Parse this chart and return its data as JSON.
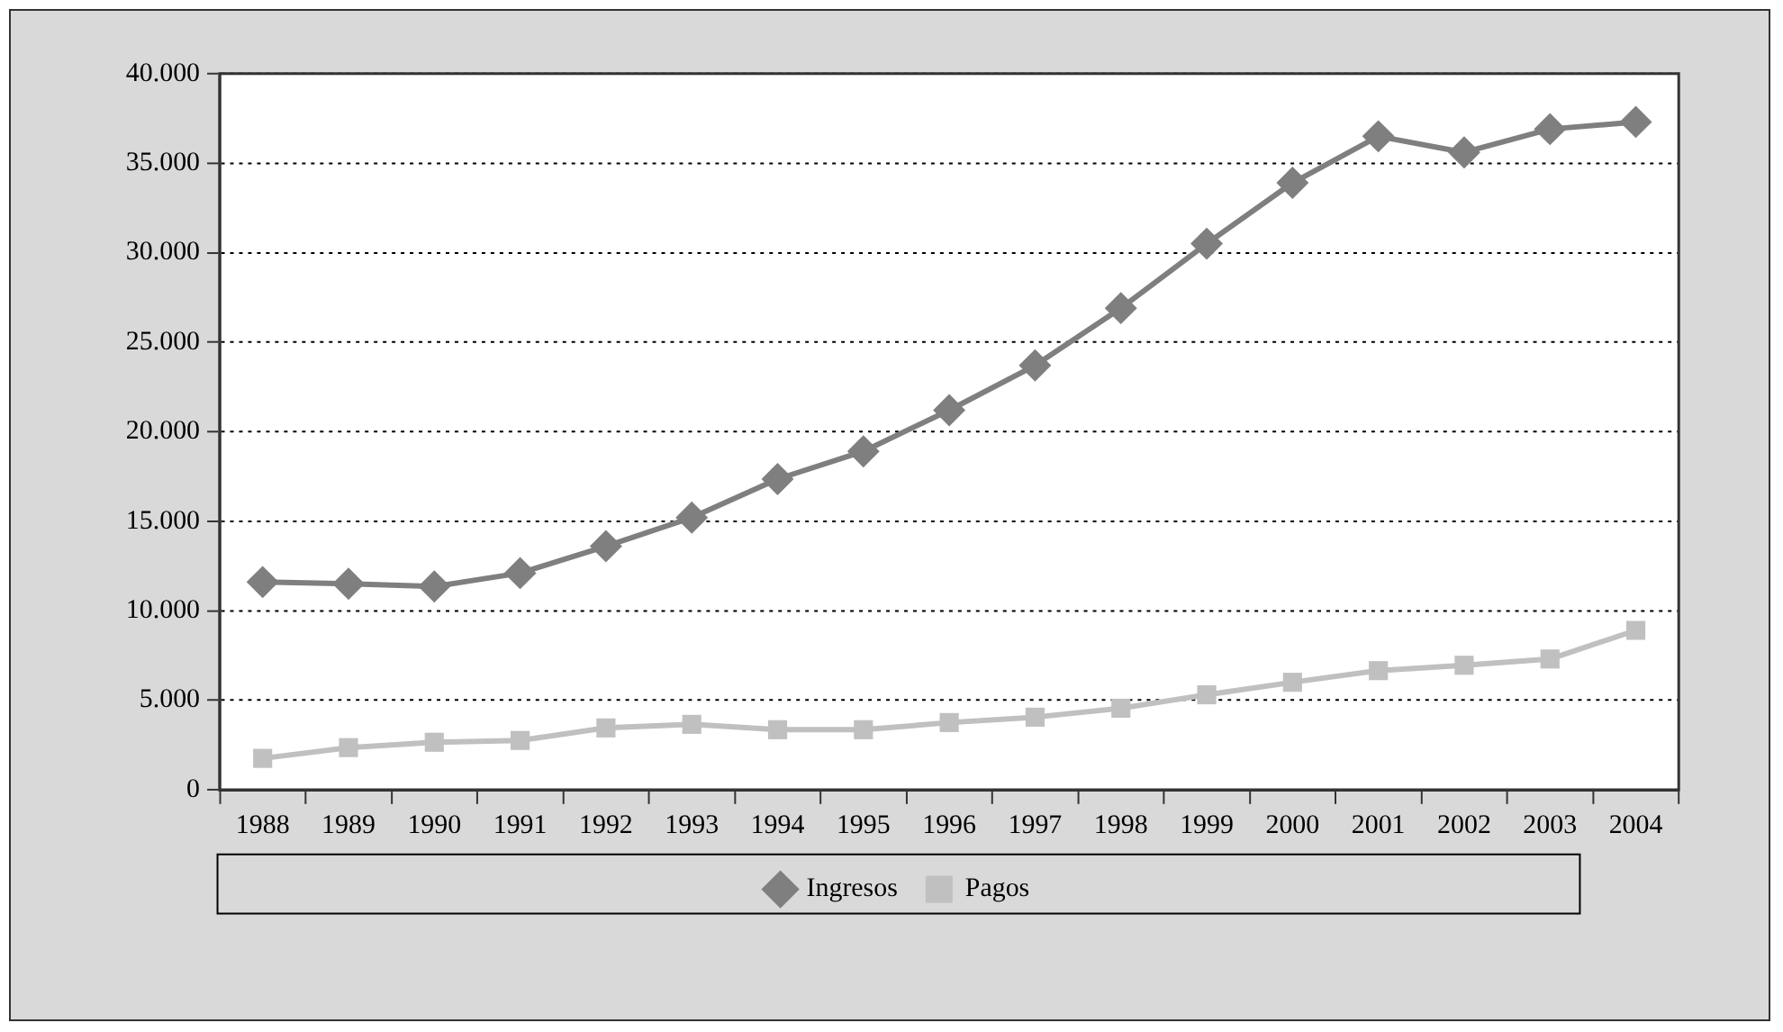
{
  "chart_data": {
    "type": "line",
    "categories": [
      "1988",
      "1989",
      "1990",
      "1991",
      "1992",
      "1993",
      "1994",
      "1995",
      "1996",
      "1997",
      "1998",
      "1999",
      "2000",
      "2001",
      "2002",
      "2003",
      "2004"
    ],
    "series": [
      {
        "name": "Ingresos",
        "color": "#7f7f7f",
        "marker": "diamond",
        "values": [
          11600,
          11500,
          11350,
          12100,
          13600,
          15200,
          17350,
          18900,
          21200,
          23700,
          26900,
          30500,
          33900,
          36500,
          35600,
          36900,
          37300
        ]
      },
      {
        "name": "Pagos",
        "color": "#c0c0c0",
        "marker": "square",
        "values": [
          1750,
          2350,
          2650,
          2750,
          3450,
          3650,
          3350,
          3350,
          3750,
          4050,
          4550,
          5300,
          6000,
          6650,
          6950,
          7300,
          8900
        ]
      }
    ],
    "ylim": [
      0,
      40000
    ],
    "yticks": [
      0,
      {
        "value": 5000,
        "label": "5.000"
      },
      {
        "value": 10000,
        "label": "10.000"
      },
      {
        "value": 15000,
        "label": "15.000"
      },
      {
        "value": 20000,
        "label": "20.000"
      },
      {
        "value": 25000,
        "label": "25.000"
      },
      {
        "value": 30000,
        "label": "30.000"
      },
      {
        "value": 35000,
        "label": "35.000"
      },
      {
        "value": 40000,
        "label": "40.000"
      }
    ],
    "grid": "y",
    "legend": "bottom",
    "line_style": "solid"
  }
}
